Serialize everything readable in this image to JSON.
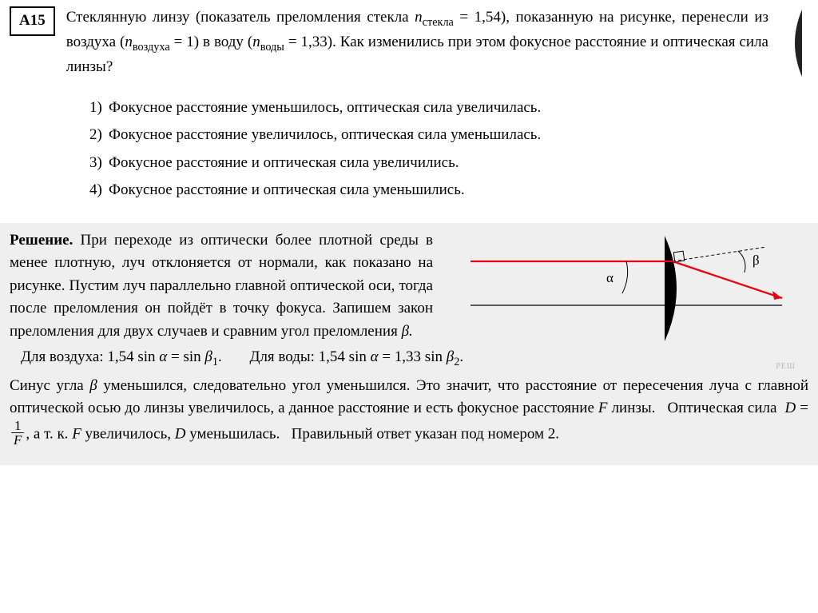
{
  "problem": {
    "badge": "А15",
    "text_html": "Стеклянную линзу (показатель преломления стекла <span class=\"ital\">n</span><sub>стекла</sub> = 1,54), показанную на рисунке, перенесли из воздуха (<span class=\"ital\">n</span><sub>воздуха</sub> = 1) в воду (<span class=\"ital\">n</span><sub>воды</sub> = 1,33). Как изменились при этом фокусное расстояние и оптическая сила линзы?",
    "options": [
      "Фокусное расстояние уменьшилось, оптическая сила увеличилась.",
      "Фокусное расстояние увеличилось, оптическая сила уменьшилась.",
      "Фокусное расстояние и оптическая сила увеличились.",
      "Фокусное расстояние и оптическая сила уменьшились."
    ]
  },
  "solution": {
    "title": "Решение.",
    "para1": " При переходе из оптически более плотной среды в менее плотную, луч отклоняется от нормали, как показано на рисунке. Пустим луч параллельно главной оптической оси, тогда после преломления он пойдёт в точку фокуса. Запишем закон преломления для двух случаев и сравним угол преломления ",
    "beta_suffix": "β.",
    "air_label": "Для воздуха:",
    "air_expr_html": "1,54 sin <span class=\"ital\">α</span> = sin <span class=\"ital\">β</span><sub>1</sub>.",
    "water_label": "Для воды:",
    "water_expr_html": "1,54 sin <span class=\"ital\">α</span> = 1,33 sin <span class=\"ital\">β</span><sub>2</sub>.",
    "para2_html": "Синус угла <span class=\"ital\">β</span> уменьшился, следовательно угол уменьшился. Это значит, что расстояние от пересечения луча с главной оптической осью до линзы увеличилось, а данное расстояние и есть фокусное расстояние <span class=\"ital\">F</span> линзы.&nbsp;&nbsp; Оптическая сила&nbsp; <span class=\"ital\">D</span> = <span class=\"inline-frac\"><span class=\"num\">1</span><span class=\"den\"><span class=\"ital\">F</span></span></span>, а т. к. <span class=\"ital\">F</span> увеличилось, <span class=\"ital\">D</span> уменьшилась.&nbsp;&nbsp; Правильный ответ указан под номером 2."
  },
  "diagram": {
    "axis_color": "#000000",
    "ray_color": "#e30613",
    "lens_fill": "#000000",
    "alpha": "α",
    "beta": "β",
    "watermark": "РЕШ"
  },
  "lens_icon_fill": "#222222"
}
